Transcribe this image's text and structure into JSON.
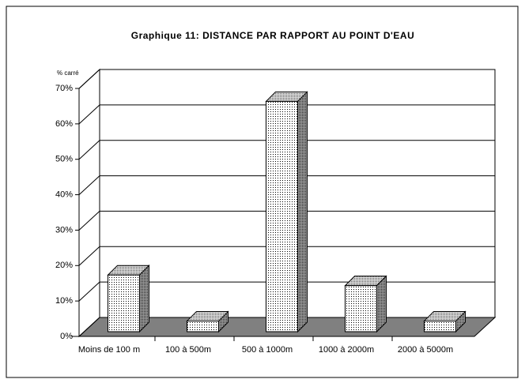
{
  "chart_data": {
    "type": "bar3d",
    "title": "Graphique 11: DISTANCE PAR RAPPORT AU POINT D'EAU",
    "y_axis_label": "% carré",
    "categories": [
      "Moins de 100 m",
      "100 à 500m",
      "500 à 1000m",
      "1000 à 2000m",
      "2000 à 5000m"
    ],
    "values": [
      16,
      3,
      65,
      13,
      3
    ],
    "ylim": [
      0,
      70
    ],
    "yticks": [
      {
        "value": 0,
        "label": "0%"
      },
      {
        "value": 10,
        "label": "10%"
      },
      {
        "value": 20,
        "label": "20%"
      },
      {
        "value": 30,
        "label": "30%"
      },
      {
        "value": 40,
        "label": "40%"
      },
      {
        "value": 50,
        "label": "50%"
      },
      {
        "value": 60,
        "label": "60%"
      },
      {
        "value": 70,
        "label": "70%"
      }
    ],
    "grid": true,
    "floor_color": "#808080"
  }
}
